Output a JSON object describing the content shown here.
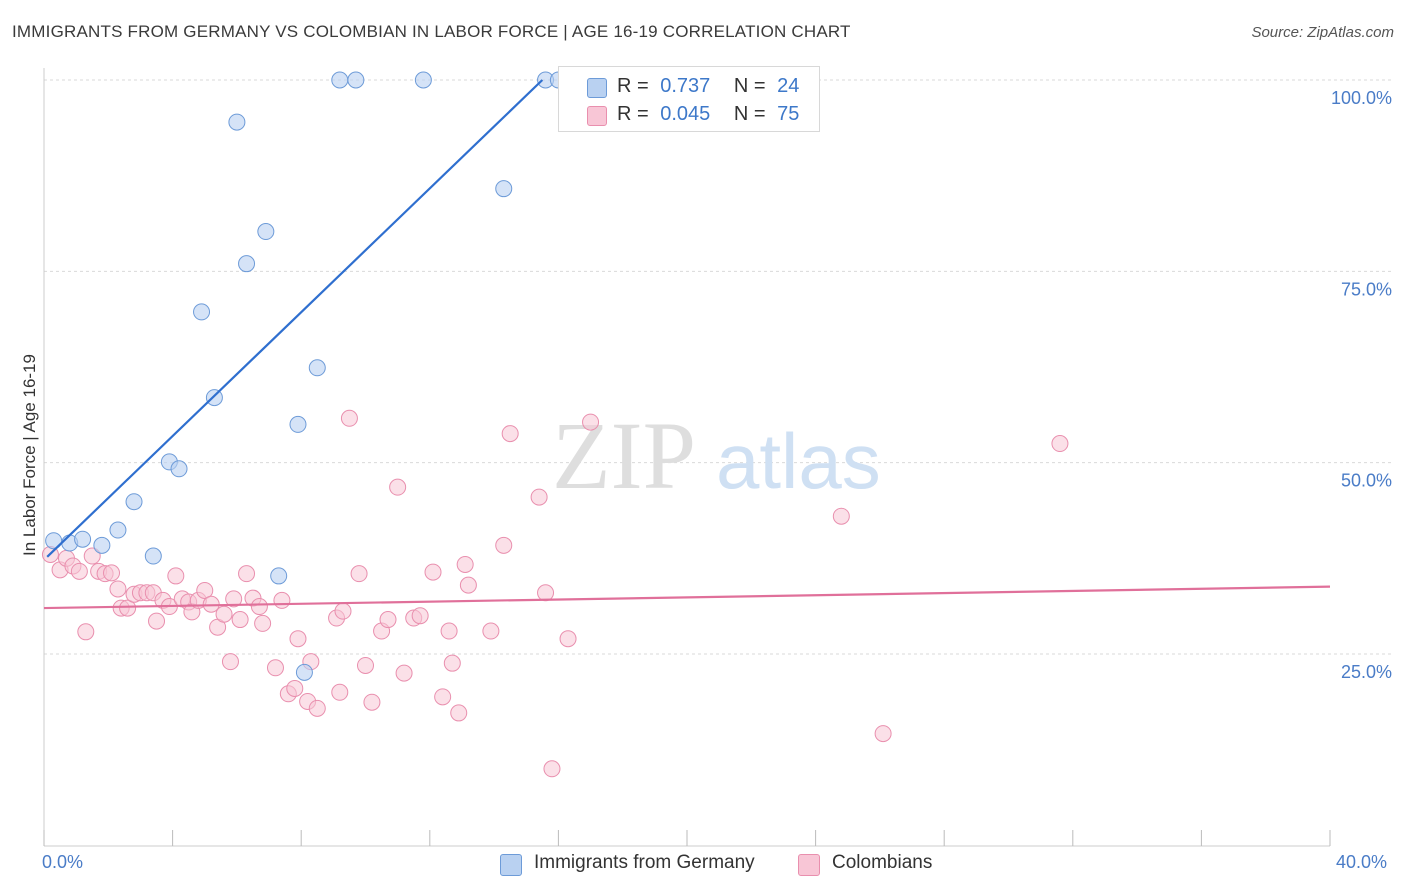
{
  "header": {
    "title": "IMMIGRANTS FROM GERMANY VS COLOMBIAN IN LABOR FORCE | AGE 16-19 CORRELATION CHART",
    "source": "Source: ZipAtlas.com"
  },
  "watermark": {
    "zip": "ZIP",
    "atlas": "atlas"
  },
  "colors": {
    "germany_fill": "#b9d1f1",
    "germany_stroke": "#6d9bd8",
    "germany_line": "#2f6fcf",
    "colombian_fill": "#f8c6d6",
    "colombian_stroke": "#e98fae",
    "colombian_line": "#e0709a",
    "grid": "#d9d9d9",
    "tick_text": "#4a7cc7"
  },
  "stats": {
    "germany": {
      "r_label": "R =",
      "r_value": "0.737",
      "n_label": "N =",
      "n_value": "24"
    },
    "colombian": {
      "r_label": "R =",
      "r_value": "0.045",
      "n_label": "N =",
      "n_value": "75"
    }
  },
  "legend": {
    "germany": "Immigrants from Germany",
    "colombian": "Colombians"
  },
  "chart_data": {
    "type": "scatter",
    "title": "IMMIGRANTS FROM GERMANY VS COLOMBIAN IN LABOR FORCE | AGE 16-19 CORRELATION CHART",
    "xlabel": "",
    "ylabel": "In Labor Force | Age 16-19",
    "xlim": [
      0,
      40
    ],
    "ylim": [
      0,
      100
    ],
    "x_tick_labels": [
      "0.0%",
      "40.0%"
    ],
    "y_ticks": [
      25,
      50,
      75,
      100
    ],
    "y_tick_labels": [
      "25.0%",
      "50.0%",
      "75.0%",
      "100.0%"
    ],
    "grid": true,
    "legend_position": "bottom",
    "series": [
      {
        "name": "Immigrants from Germany",
        "points": [
          [
            0.3,
            39.8
          ],
          [
            0.8,
            39.5
          ],
          [
            1.2,
            40.0
          ],
          [
            1.8,
            39.2
          ],
          [
            2.3,
            41.2
          ],
          [
            2.8,
            44.9
          ],
          [
            3.4,
            37.8
          ],
          [
            3.9,
            50.1
          ],
          [
            4.2,
            49.2
          ],
          [
            4.9,
            69.7
          ],
          [
            5.3,
            58.5
          ],
          [
            6.0,
            94.5
          ],
          [
            6.3,
            76.0
          ],
          [
            6.9,
            80.2
          ],
          [
            7.3,
            35.2
          ],
          [
            7.9,
            55.0
          ],
          [
            8.1,
            22.6
          ],
          [
            8.5,
            62.4
          ],
          [
            9.2,
            100.0
          ],
          [
            9.7,
            100.0
          ],
          [
            11.8,
            100.0
          ],
          [
            14.3,
            85.8
          ],
          [
            15.6,
            100.0
          ],
          [
            16.0,
            100.0
          ]
        ],
        "trend": [
          [
            0.1,
            37.7
          ],
          [
            15.5,
            100.0
          ]
        ]
      },
      {
        "name": "Colombians",
        "points": [
          [
            0.2,
            38.0
          ],
          [
            0.5,
            36.0
          ],
          [
            0.7,
            37.5
          ],
          [
            0.9,
            36.5
          ],
          [
            1.1,
            35.8
          ],
          [
            1.3,
            27.9
          ],
          [
            1.5,
            37.8
          ],
          [
            1.7,
            35.8
          ],
          [
            1.9,
            35.5
          ],
          [
            2.1,
            35.6
          ],
          [
            2.3,
            33.5
          ],
          [
            2.4,
            31.0
          ],
          [
            2.6,
            31.0
          ],
          [
            2.8,
            32.8
          ],
          [
            3.0,
            33.0
          ],
          [
            3.2,
            33.0
          ],
          [
            3.4,
            33.0
          ],
          [
            3.5,
            29.3
          ],
          [
            3.7,
            32.0
          ],
          [
            3.9,
            31.2
          ],
          [
            4.1,
            35.2
          ],
          [
            4.3,
            32.2
          ],
          [
            4.5,
            31.8
          ],
          [
            4.6,
            30.5
          ],
          [
            4.8,
            32.0
          ],
          [
            5.0,
            33.3
          ],
          [
            5.2,
            31.5
          ],
          [
            5.4,
            28.5
          ],
          [
            5.6,
            30.2
          ],
          [
            5.8,
            24.0
          ],
          [
            5.9,
            32.2
          ],
          [
            6.1,
            29.5
          ],
          [
            6.3,
            35.5
          ],
          [
            6.5,
            32.3
          ],
          [
            6.7,
            31.2
          ],
          [
            6.8,
            29.0
          ],
          [
            7.2,
            23.2
          ],
          [
            7.4,
            32.0
          ],
          [
            7.6,
            19.8
          ],
          [
            7.8,
            20.5
          ],
          [
            7.9,
            27.0
          ],
          [
            8.2,
            18.8
          ],
          [
            8.3,
            24.0
          ],
          [
            8.5,
            17.9
          ],
          [
            9.1,
            29.7
          ],
          [
            9.2,
            20.0
          ],
          [
            9.3,
            30.6
          ],
          [
            9.5,
            55.8
          ],
          [
            9.8,
            35.5
          ],
          [
            10.0,
            23.5
          ],
          [
            10.2,
            18.7
          ],
          [
            10.5,
            28.0
          ],
          [
            10.7,
            29.5
          ],
          [
            11.0,
            46.8
          ],
          [
            11.2,
            22.5
          ],
          [
            11.5,
            29.7
          ],
          [
            11.7,
            30.0
          ],
          [
            12.1,
            35.7
          ],
          [
            12.4,
            19.4
          ],
          [
            12.6,
            28.0
          ],
          [
            12.7,
            23.8
          ],
          [
            12.9,
            17.3
          ],
          [
            13.1,
            36.7
          ],
          [
            13.2,
            34.0
          ],
          [
            13.9,
            28.0
          ],
          [
            14.3,
            39.2
          ],
          [
            14.5,
            53.8
          ],
          [
            15.4,
            45.5
          ],
          [
            15.6,
            33.0
          ],
          [
            15.8,
            10.0
          ],
          [
            16.3,
            27.0
          ],
          [
            17.0,
            55.3
          ],
          [
            24.8,
            43.0
          ],
          [
            26.1,
            14.6
          ],
          [
            31.6,
            52.5
          ]
        ],
        "trend": [
          [
            0,
            31.0
          ],
          [
            40,
            33.8
          ]
        ]
      }
    ]
  }
}
